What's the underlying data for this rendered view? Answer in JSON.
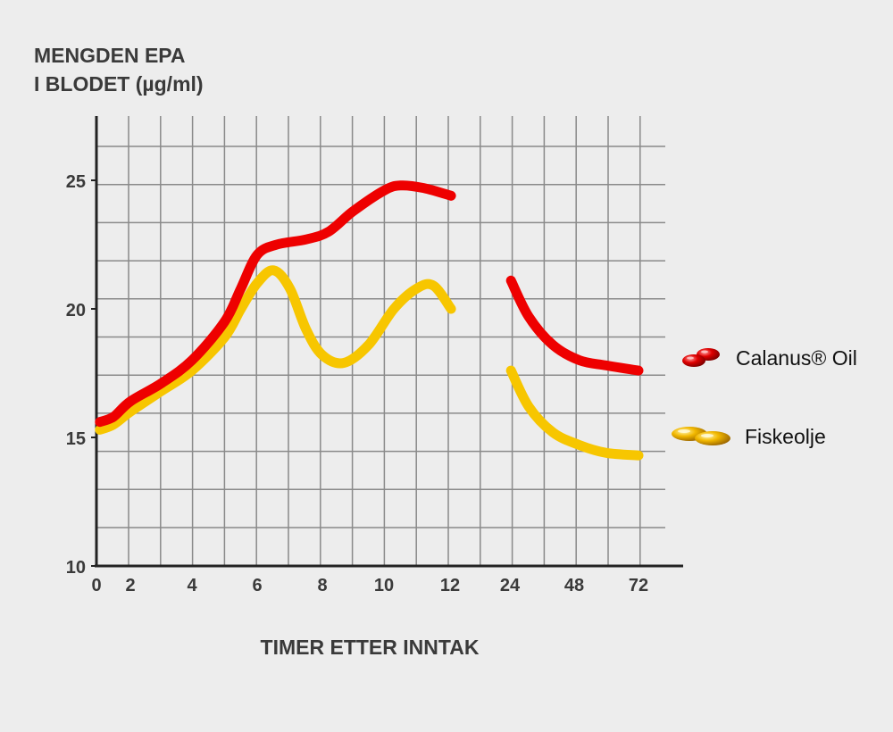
{
  "colors": {
    "calanus": "#ee0000",
    "fiskeolje": "#f7c600",
    "grid": "#8a8a8a",
    "axis": "#222222",
    "background": "#ededed"
  },
  "icons": {
    "calanus": "red-capsules-icon",
    "fiskeolje": "gold-capsules-icon"
  },
  "chart_data": {
    "type": "line",
    "title": "",
    "ylabel": [
      "MENGDEN EPA",
      "I BLODET (µg/ml)"
    ],
    "xlabel": "TIMER ETTER INNTAK",
    "x_ticks": [
      "0",
      "2",
      "4",
      "6",
      "8",
      "10",
      "12",
      "24",
      "48",
      "72"
    ],
    "y_ticks": [
      "10",
      "15",
      "20",
      "25"
    ],
    "ylim": [
      10,
      27.5
    ],
    "grid": true,
    "legend_position": "right",
    "series": [
      {
        "name": "Calanus® Oil",
        "color": "#ee0000",
        "segments": [
          [
            [
              0.2,
              15.6
            ],
            [
              1,
              15.8
            ],
            [
              2,
              16.4
            ],
            [
              3,
              17.1
            ],
            [
              4,
              18.0
            ],
            [
              5,
              19.5
            ],
            [
              5.5,
              20.8
            ],
            [
              6,
              22.1
            ],
            [
              6.6,
              22.5
            ],
            [
              7.5,
              22.7
            ],
            [
              8.2,
              23.0
            ],
            [
              9,
              23.8
            ],
            [
              10,
              24.6
            ],
            [
              10.5,
              24.8
            ],
            [
              11.2,
              24.7
            ],
            [
              12.2,
              24.4
            ]
          ],
          [
            [
              24.4,
              21.1
            ],
            [
              31,
              19.7
            ],
            [
              40,
              18.6
            ],
            [
              50,
              18.0
            ],
            [
              60,
              17.8
            ],
            [
              72,
              17.6
            ]
          ]
        ]
      },
      {
        "name": "Fiskeolje",
        "color": "#f7c600",
        "segments": [
          [
            [
              0.2,
              15.3
            ],
            [
              1,
              15.5
            ],
            [
              2,
              16.0
            ],
            [
              3,
              16.8
            ],
            [
              4,
              17.6
            ],
            [
              5,
              18.9
            ],
            [
              5.5,
              20.0
            ],
            [
              6,
              21.0
            ],
            [
              6.5,
              21.5
            ],
            [
              7,
              20.8
            ],
            [
              7.5,
              19.2
            ],
            [
              8,
              18.2
            ],
            [
              8.7,
              17.9
            ],
            [
              9.5,
              18.6
            ],
            [
              10.3,
              20.0
            ],
            [
              11,
              20.8
            ],
            [
              11.5,
              20.9
            ],
            [
              12.2,
              20.0
            ]
          ],
          [
            [
              24.4,
              17.6
            ],
            [
              31,
              16.2
            ],
            [
              40,
              15.2
            ],
            [
              50,
              14.7
            ],
            [
              60,
              14.4
            ],
            [
              72,
              14.3
            ]
          ]
        ]
      }
    ]
  }
}
